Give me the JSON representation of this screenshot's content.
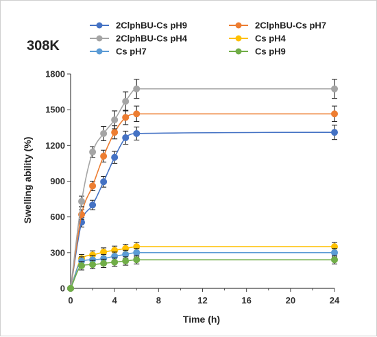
{
  "chart_data": {
    "type": "line",
    "annotation": "308K",
    "xlabel": "Time (h)",
    "ylabel": "Swelling ability (%)",
    "xlim": [
      0,
      24
    ],
    "ylim": [
      0,
      1800
    ],
    "xticks": [
      0,
      4,
      8,
      12,
      16,
      20,
      24
    ],
    "yticks": [
      0,
      300,
      600,
      900,
      1200,
      1500,
      1800
    ],
    "x": [
      0,
      1,
      2,
      3,
      4,
      5,
      6,
      24
    ],
    "grid": false,
    "legend_position": "top",
    "series": [
      {
        "name": "2ClphBU-Cs pH9",
        "color": "#4472C4",
        "values": [
          0,
          555,
          700,
          895,
          1100,
          1265,
          1300,
          1310
        ],
        "error": [
          0,
          40,
          40,
          45,
          50,
          55,
          55,
          60
        ]
      },
      {
        "name": "2ClphBU-Cs pH7",
        "color": "#ED7D31",
        "values": [
          0,
          620,
          860,
          1110,
          1310,
          1435,
          1465,
          1465
        ],
        "error": [
          0,
          40,
          40,
          50,
          55,
          60,
          65,
          65
        ]
      },
      {
        "name": "2ClphBU-Cs pH4",
        "color": "#A5A5A5",
        "values": [
          0,
          730,
          1145,
          1300,
          1415,
          1570,
          1675,
          1675
        ],
        "error": [
          0,
          45,
          45,
          60,
          75,
          80,
          80,
          80
        ]
      },
      {
        "name": "Cs pH4",
        "color": "#FFC000",
        "values": [
          0,
          250,
          280,
          305,
          320,
          335,
          350,
          350
        ],
        "error": [
          0,
          35,
          35,
          35,
          35,
          35,
          35,
          35
        ]
      },
      {
        "name": "Cs pH7",
        "color": "#5B9BD5",
        "values": [
          0,
          230,
          240,
          250,
          270,
          285,
          300,
          300
        ],
        "error": [
          0,
          35,
          35,
          35,
          35,
          35,
          35,
          35
        ]
      },
      {
        "name": "Cs pH9",
        "color": "#70AD47",
        "values": [
          0,
          190,
          200,
          210,
          220,
          230,
          240,
          240
        ],
        "error": [
          0,
          35,
          35,
          35,
          35,
          35,
          35,
          35
        ]
      }
    ]
  }
}
